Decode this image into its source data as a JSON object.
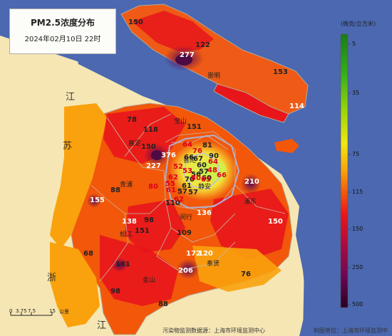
{
  "title": {
    "line1": "PM2.5浓度分布",
    "line2": "2024年02月10日 22时"
  },
  "legend": {
    "unit": "(微克/立方米)",
    "ticks": [
      "5",
      "35",
      "75",
      "115",
      "150",
      "250",
      "500"
    ],
    "colors": [
      "#1a7a1a",
      "#38b018",
      "#9bd40c",
      "#f2e70f",
      "#f9a20d",
      "#f2570a",
      "#e8161b",
      "#b20c3a",
      "#6e0858",
      "#2a0020"
    ]
  },
  "geo_labels": {
    "jiang": "江",
    "su": "苏",
    "zhe": "浙",
    "jiang2": "江"
  },
  "places": [
    "崇明",
    "宝山",
    "嘉定",
    "青浦",
    "普陀",
    "静安",
    "浦东",
    "闵行",
    "松江",
    "奉贤",
    "金山"
  ],
  "values": [
    "150",
    "277",
    "122",
    "153",
    "114",
    "78",
    "118",
    "151",
    "150",
    "376",
    "64",
    "81",
    "66",
    "227",
    "76",
    "90",
    "67",
    "64",
    "52",
    "60",
    "80",
    "53",
    "56",
    "57",
    "48",
    "66",
    "62",
    "60",
    "210",
    "88",
    "70",
    "61",
    "55",
    "65",
    "80",
    "61",
    "57",
    "57",
    "155",
    "110",
    "62",
    "136",
    "98",
    "138",
    "151",
    "109",
    "150",
    "68",
    "172",
    "120",
    "161",
    "206",
    "76",
    "98",
    "88"
  ],
  "scale": {
    "ticks": [
      "0",
      "3.75",
      "7.5",
      "15"
    ],
    "unit": "公里"
  },
  "footer": {
    "source": "污染物监测数据源：上海市环境监测中心",
    "maker": "制图单位：上海市环境监测中心"
  }
}
